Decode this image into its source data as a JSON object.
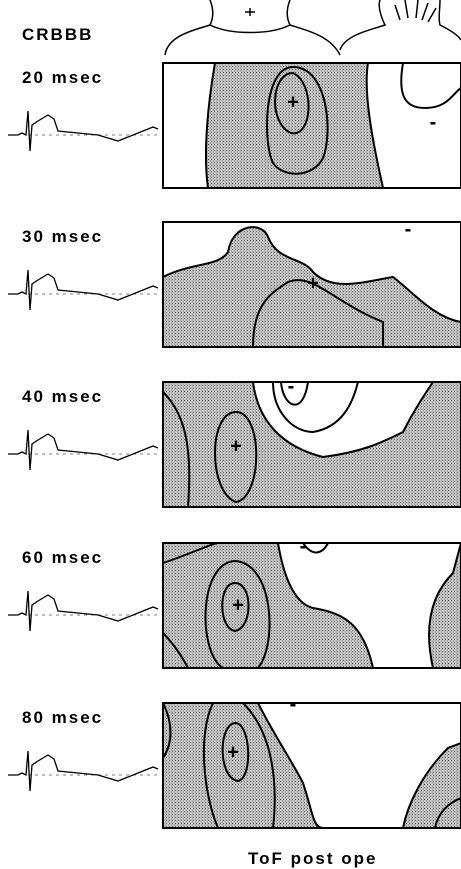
{
  "figure": {
    "title": "CRBBB",
    "caption": "ToF post ope",
    "panels": [
      {
        "time": "20 msec",
        "max": "+",
        "min": "-"
      },
      {
        "time": "30 msec",
        "max": "+",
        "min": "-"
      },
      {
        "time": "40 msec",
        "max": "+",
        "min": "-"
      },
      {
        "time": "60 msec",
        "max": "+",
        "min": "-"
      },
      {
        "time": "80 msec",
        "max": "+",
        "min": "-"
      }
    ]
  }
}
